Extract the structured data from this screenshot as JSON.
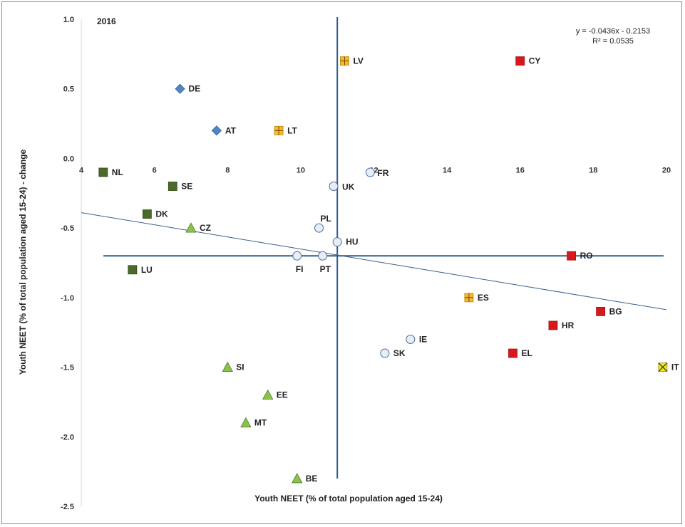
{
  "chart_data": {
    "type": "scatter",
    "title": "2016",
    "xlabel": "Youth NEET (% of total population aged 15-24)",
    "ylabel": "Youth NEET (% of total population aged 15-24) - change",
    "xlim": [
      4,
      20
    ],
    "ylim": [
      -2.5,
      1.0
    ],
    "x_ticks": [
      "4",
      "6",
      "8",
      "10",
      "12",
      "14",
      "16",
      "18",
      "20"
    ],
    "y_ticks": [
      "1.0",
      "0.5",
      "0.0",
      "-0.5",
      "-1.0",
      "-1.5",
      "-2.0",
      "-2.5"
    ],
    "reference_lines": {
      "x_mean": 11.0,
      "y_mean": -0.7,
      "color": "#2e5f8a"
    },
    "trendline": {
      "equation": "y = -0.0436x - 0.2153",
      "r2": "R² = 0.0535",
      "slope": -0.0436,
      "intercept": -0.2153,
      "color": "#3b5e8c"
    },
    "series": [
      {
        "marker": "diamond",
        "color": "#4f86c6",
        "points": [
          {
            "label": "DE",
            "x": 6.7,
            "y": 0.5
          },
          {
            "label": "AT",
            "x": 7.7,
            "y": 0.2
          }
        ]
      },
      {
        "marker": "square-plus",
        "color": "#f5b82e",
        "points": [
          {
            "label": "LV",
            "x": 11.2,
            "y": 0.7
          },
          {
            "label": "LT",
            "x": 9.4,
            "y": 0.2
          },
          {
            "label": "ES",
            "x": 14.6,
            "y": -1.0
          }
        ]
      },
      {
        "marker": "square",
        "color": "#d7191c",
        "points": [
          {
            "label": "CY",
            "x": 16.0,
            "y": 0.7
          },
          {
            "label": "RO",
            "x": 17.4,
            "y": -0.7
          },
          {
            "label": "BG",
            "x": 18.2,
            "y": -1.1
          },
          {
            "label": "HR",
            "x": 16.9,
            "y": -1.2
          },
          {
            "label": "EL",
            "x": 15.8,
            "y": -1.4
          }
        ]
      },
      {
        "marker": "square",
        "color": "#4a6b2a",
        "points": [
          {
            "label": "NL",
            "x": 4.6,
            "y": -0.1
          },
          {
            "label": "SE",
            "x": 6.5,
            "y": -0.2
          },
          {
            "label": "DK",
            "x": 5.8,
            "y": -0.4
          },
          {
            "label": "LU",
            "x": 5.4,
            "y": -0.8
          }
        ]
      },
      {
        "marker": "triangle",
        "color": "#8bc34a",
        "points": [
          {
            "label": "CZ",
            "x": 7.0,
            "y": -0.5
          },
          {
            "label": "SI",
            "x": 8.0,
            "y": -1.5
          },
          {
            "label": "EE",
            "x": 9.1,
            "y": -1.7
          },
          {
            "label": "MT",
            "x": 8.5,
            "y": -1.9
          },
          {
            "label": "BE",
            "x": 9.9,
            "y": -2.3
          }
        ]
      },
      {
        "marker": "circle",
        "color": "#e8edf6",
        "points": [
          {
            "label": "FR",
            "x": 11.9,
            "y": -0.1
          },
          {
            "label": "UK",
            "x": 10.9,
            "y": -0.2
          },
          {
            "label": "PL",
            "x": 10.5,
            "y": -0.5
          },
          {
            "label": "HU",
            "x": 11.0,
            "y": -0.6
          },
          {
            "label": "FI",
            "x": 9.9,
            "y": -0.7
          },
          {
            "label": "PT",
            "x": 10.6,
            "y": -0.7
          },
          {
            "label": "IE",
            "x": 13.0,
            "y": -1.3
          },
          {
            "label": "SK",
            "x": 12.3,
            "y": -1.4
          }
        ]
      },
      {
        "marker": "square-x",
        "color": "#f5e61e",
        "points": [
          {
            "label": "IT",
            "x": 19.9,
            "y": -1.5
          }
        ]
      }
    ]
  }
}
